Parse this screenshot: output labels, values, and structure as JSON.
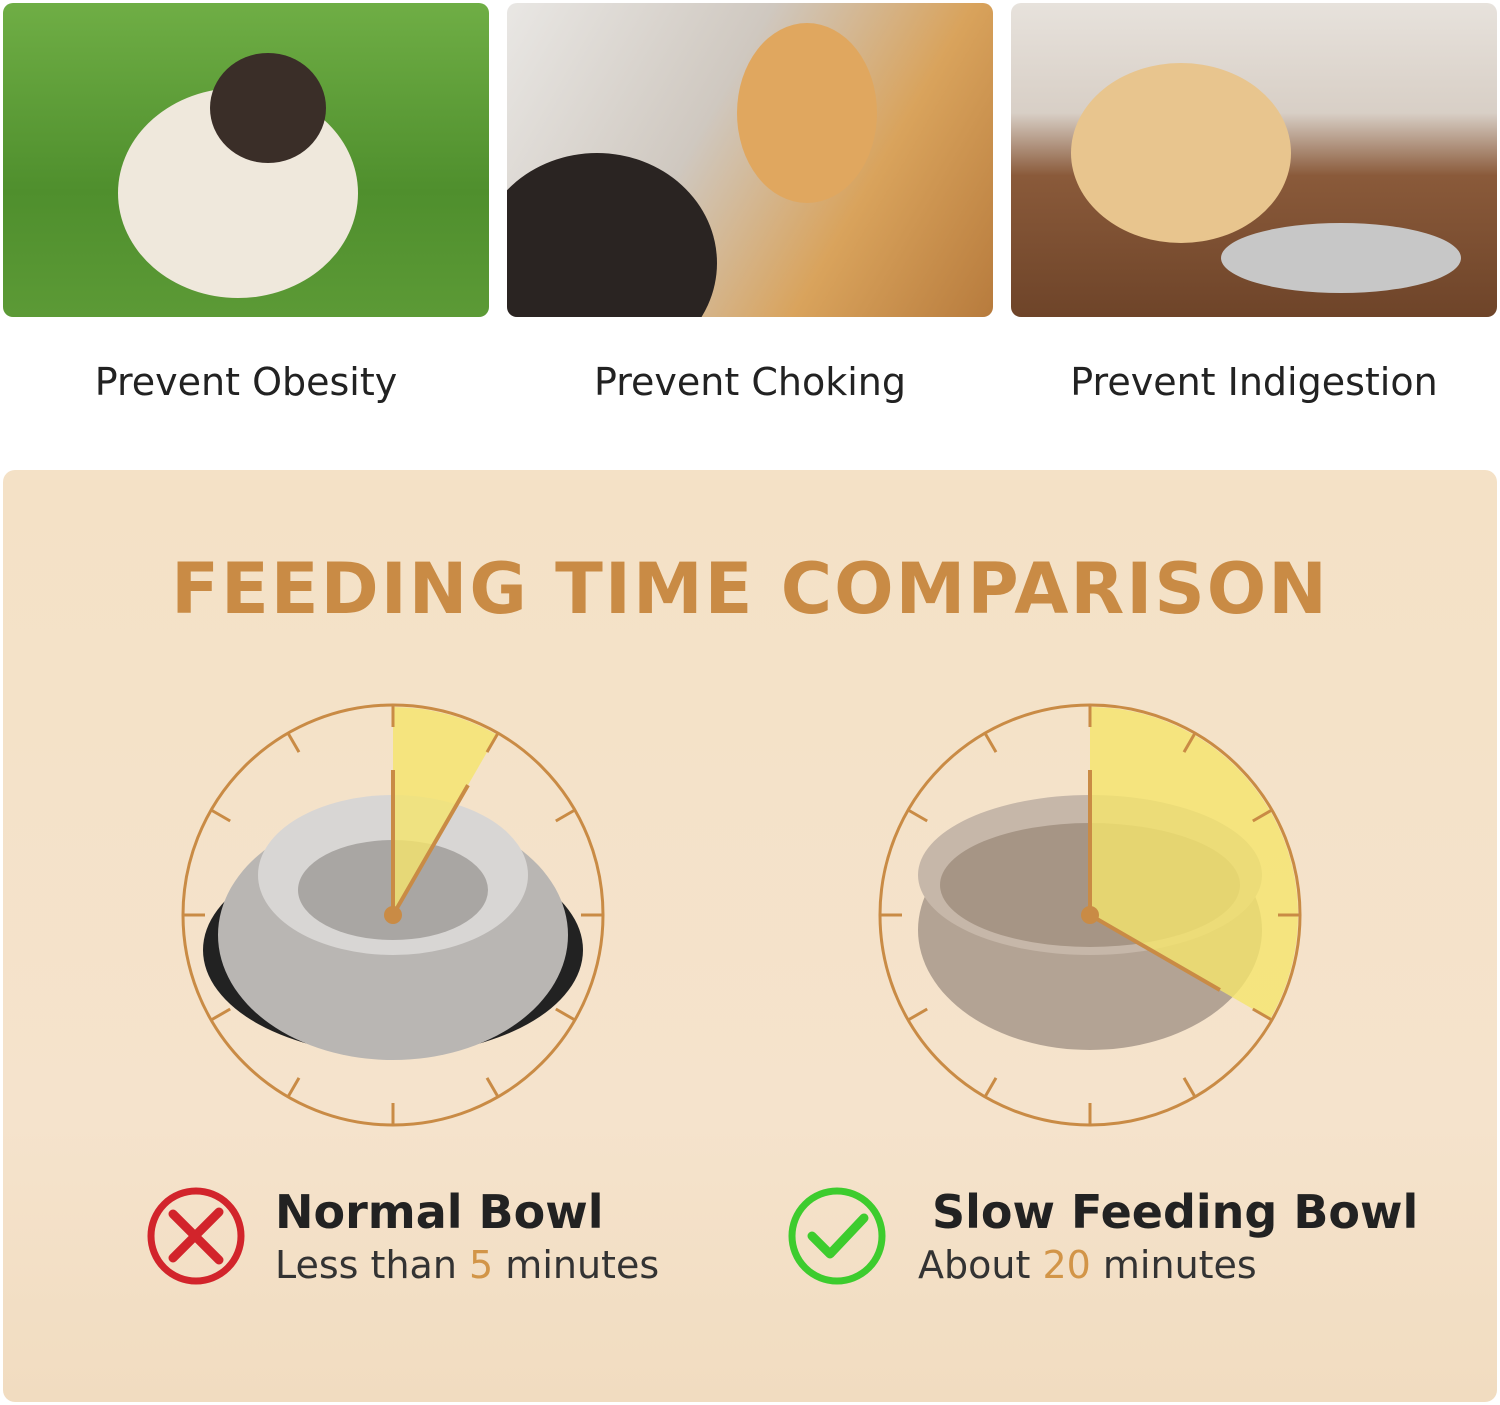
{
  "benefits": [
    {
      "label": "Prevent Obesity"
    },
    {
      "label": "Prevent Choking"
    },
    {
      "label": "Prevent Indigestion"
    }
  ],
  "comparison": {
    "title": "FEEDING TIME COMPARISON",
    "accent": "#c98b45",
    "highlight": "#f5e56b",
    "normal": {
      "name": "Normal Bowl",
      "prefix": "Less than",
      "value": "5",
      "unit": "minutes",
      "icon": "x-circle-icon",
      "icon_color": "#d2242b",
      "minutes": 5
    },
    "slow": {
      "name": "Slow Feeding Bowl",
      "prefix": "About",
      "value": "20",
      "unit": "minutes",
      "icon": "check-circle-icon",
      "icon_color": "#3dcc2e",
      "minutes": 20
    }
  }
}
